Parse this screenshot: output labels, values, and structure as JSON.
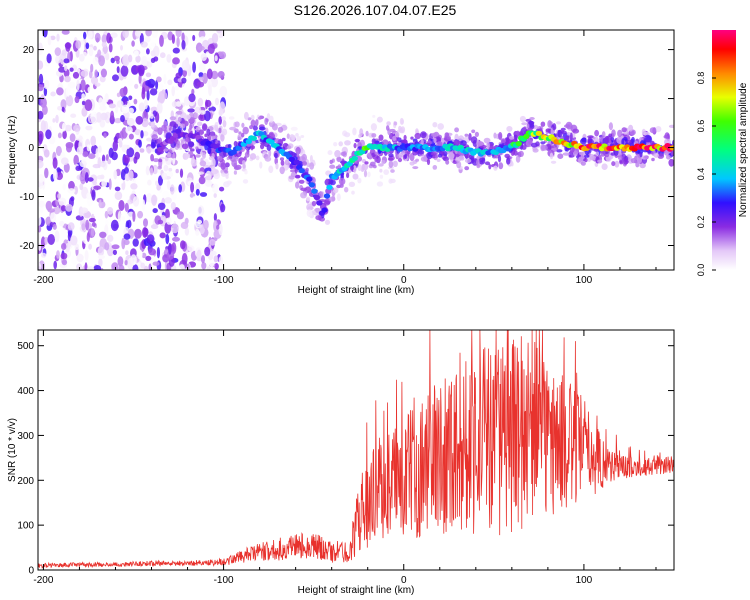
{
  "title": "S126.2026.107.04.07.E25",
  "chart_data": [
    {
      "type": "heatmap",
      "name": "spectrogram",
      "xlabel": "Height of straight line (km)",
      "ylabel": "Frequency (Hz)",
      "xlim": [
        -203,
        150
      ],
      "ylim": [
        -25,
        24
      ],
      "xticks": [
        -200,
        -100,
        0,
        100
      ],
      "yticks": [
        -20,
        -10,
        0,
        10,
        20
      ],
      "colorbar": {
        "label": "Normalized spectral amplitude",
        "range": [
          0,
          1
        ],
        "ticks": [
          "0.0",
          "0.2",
          "0.4",
          "0.6",
          "0.8"
        ]
      },
      "ridge": {
        "x": [
          -135,
          -125,
          -115,
          -105,
          -95,
          -88,
          -80,
          -70,
          -60,
          -52,
          -47,
          -45,
          -40,
          -35,
          -30,
          -25,
          -20,
          -10,
          0,
          10,
          20,
          30,
          40,
          50,
          60,
          70,
          80,
          90,
          100,
          110,
          120,
          130,
          140,
          150
        ],
        "y": [
          0,
          3,
          2,
          0,
          -1,
          1,
          3,
          0,
          -3,
          -7,
          -11,
          -14,
          -6,
          -5,
          -3,
          -1,
          0,
          0,
          0,
          0,
          0,
          0,
          -1,
          -1,
          0,
          3,
          2,
          1,
          0,
          0,
          0,
          0,
          0,
          0
        ],
        "amplitude": [
          0.15,
          0.2,
          0.2,
          0.25,
          0.3,
          0.35,
          0.35,
          0.35,
          0.3,
          0.3,
          0.25,
          0.2,
          0.35,
          0.4,
          0.4,
          0.45,
          0.55,
          0.4,
          0.3,
          0.3,
          0.35,
          0.4,
          0.35,
          0.35,
          0.45,
          0.6,
          0.65,
          0.7,
          0.8,
          0.9,
          0.95,
          0.95,
          0.9,
          0.85
        ]
      },
      "noise_region": [
        -203,
        -100
      ]
    },
    {
      "type": "line",
      "name": "snr",
      "xlabel": "Height of straight line (km)",
      "ylabel": "SNR (10 * v/v)",
      "xlim": [
        -203,
        150
      ],
      "ylim": [
        0,
        535
      ],
      "xticks": [
        -200,
        -100,
        0,
        100
      ],
      "yticks": [
        0,
        100,
        200,
        300,
        400,
        500
      ],
      "color": "#e8322d",
      "series": [
        {
          "name": "SNR",
          "x": [
            -203,
            -180,
            -160,
            -140,
            -120,
            -100,
            -90,
            -80,
            -70,
            -60,
            -50,
            -40,
            -30,
            -25,
            -20,
            -15,
            -10,
            -5,
            0,
            5,
            10,
            20,
            30,
            40,
            50,
            60,
            70,
            80,
            90,
            100,
            110,
            120,
            130,
            140,
            150
          ],
          "values": [
            10,
            12,
            12,
            15,
            15,
            18,
            30,
            40,
            45,
            55,
            55,
            40,
            40,
            120,
            150,
            180,
            190,
            200,
            200,
            220,
            230,
            260,
            280,
            300,
            290,
            300,
            320,
            290,
            280,
            270,
            240,
            230,
            230,
            230,
            235
          ],
          "spread": [
            5,
            5,
            5,
            6,
            6,
            8,
            15,
            20,
            25,
            30,
            30,
            25,
            25,
            80,
            100,
            110,
            120,
            130,
            130,
            150,
            160,
            180,
            200,
            220,
            220,
            220,
            220,
            180,
            150,
            120,
            60,
            30,
            20,
            20,
            20
          ]
        }
      ]
    }
  ]
}
